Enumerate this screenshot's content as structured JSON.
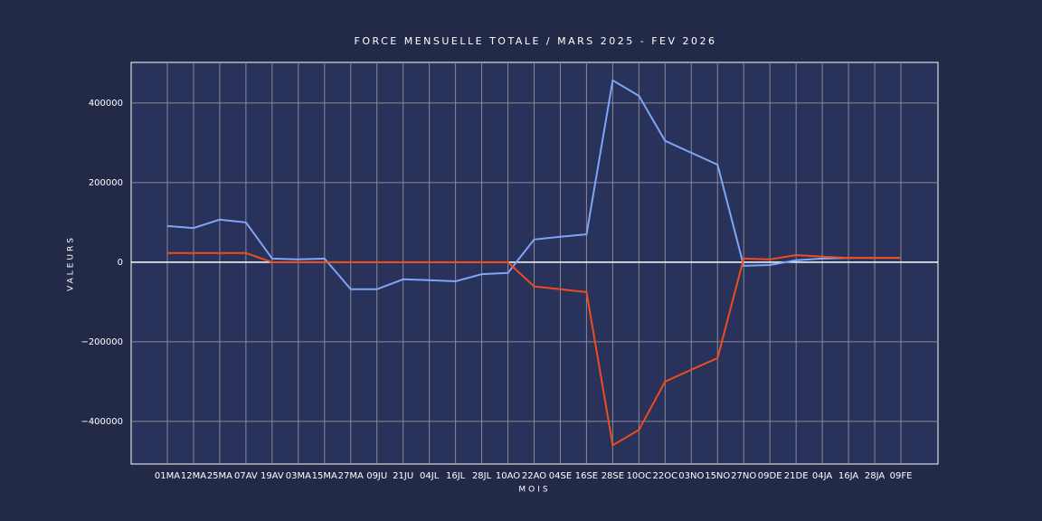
{
  "chart_data": {
    "type": "line",
    "title": "FORCE MENSUELLE  TOTALE / MARS 2025 - FEV 2026",
    "x_label": "MOIS",
    "y_label": "VALEURS",
    "categories": [
      "01MA",
      "12MA",
      "25MA",
      "07AV",
      "19AV",
      "03MA",
      "15MA",
      "27MA",
      "09JU",
      "21JU",
      "04JL",
      "16JL",
      "28JL",
      "10AO",
      "22AO",
      "04SE",
      "16SE",
      "28SE",
      "10OC",
      "22OC",
      "03NO",
      "15NO",
      "27NO",
      "09DE",
      "21DE",
      "04JA",
      "16JA",
      "28JA",
      "09FE"
    ],
    "series": [
      {
        "color": "#7ea6f5",
        "values": [
          91000,
          86000,
          107000,
          100000,
          9000,
          7000,
          9000,
          -68000,
          -68000,
          -43000,
          -45000,
          -48000,
          -30000,
          -27000,
          57000,
          64000,
          70000,
          457000,
          418000,
          305000,
          275000,
          245000,
          -9000,
          -7000,
          5000,
          9000,
          11000,
          11000,
          11000
        ]
      },
      {
        "color": "#f04d1a",
        "values": [
          23000,
          23000,
          23000,
          23000,
          0,
          0,
          0,
          0,
          0,
          0,
          0,
          0,
          0,
          0,
          -61000,
          -68000,
          -75000,
          -460000,
          -421000,
          -300000,
          -270000,
          -241000,
          9000,
          7000,
          18000,
          14000,
          11000,
          11000,
          11000
        ]
      }
    ],
    "ylim": [
      -507000,
      502000
    ],
    "yticks": [
      {
        "value": -400000,
        "label": "−400000"
      },
      {
        "value": -200000,
        "label": "−200000"
      },
      0,
      200000,
      400000
    ],
    "grid": true
  }
}
